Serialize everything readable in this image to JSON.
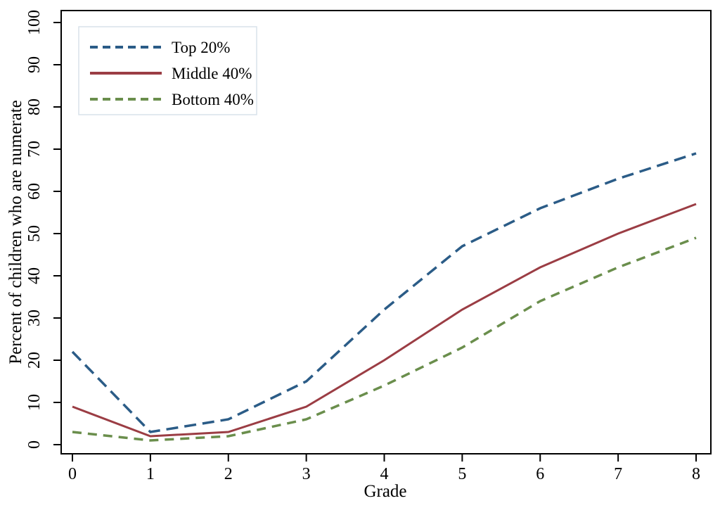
{
  "figure": {
    "background": "#ffffff",
    "axis_color": "#000000",
    "legend_border_color": "#d9e2ea"
  },
  "chart_data": {
    "type": "line",
    "title": "",
    "xlabel": "Grade",
    "ylabel": "Percent of children who are numerate",
    "x": [
      0,
      1,
      2,
      3,
      4,
      5,
      6,
      7,
      8
    ],
    "xticks": [
      "0",
      "1",
      "2",
      "3",
      "4",
      "5",
      "6",
      "7",
      "8"
    ],
    "yticks": [
      "0",
      "10",
      "20",
      "30",
      "40",
      "50",
      "60",
      "70",
      "80",
      "90",
      "100"
    ],
    "xlim": [
      0,
      8
    ],
    "ylim": [
      0,
      100
    ],
    "grid": false,
    "legend_position": "top-left",
    "series": [
      {
        "name": "Top 20%",
        "color": "#2b5c87",
        "style": "dashed",
        "dash": "17,9",
        "width": 3.5,
        "values": [
          22,
          3,
          6,
          15,
          32,
          47,
          56,
          63,
          69
        ]
      },
      {
        "name": "Middle 40%",
        "color": "#9b3d44",
        "style": "solid",
        "dash": "",
        "width": 3,
        "values": [
          9,
          2,
          3,
          9,
          20,
          32,
          42,
          50,
          57
        ]
      },
      {
        "name": "Bottom 40%",
        "color": "#6a8e4c",
        "style": "dashed",
        "dash": "13,9",
        "width": 3.5,
        "values": [
          3,
          1,
          2,
          6,
          14,
          23,
          34,
          42,
          49
        ]
      }
    ]
  }
}
